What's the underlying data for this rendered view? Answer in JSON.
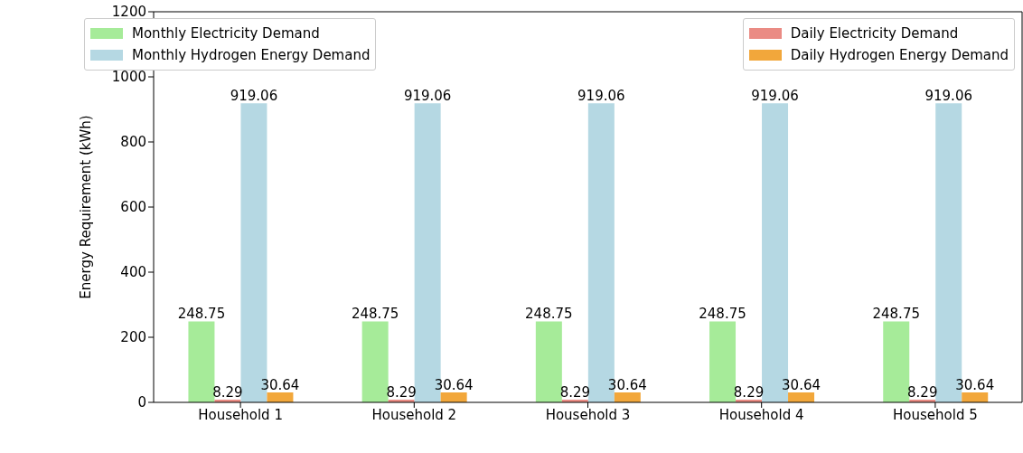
{
  "chart_data": {
    "type": "bar",
    "ylabel": "Energy Requirement (kWh)",
    "categories": [
      "Household 1",
      "Household 2",
      "Household 3",
      "Household 4",
      "Household 5"
    ],
    "series": [
      {
        "name": "Monthly Electricity Demand",
        "color": "#a6eb99",
        "values": [
          248.75,
          248.75,
          248.75,
          248.75,
          248.75
        ]
      },
      {
        "name": "Daily Electricity Demand",
        "color": "#ea8b84",
        "values": [
          8.29,
          8.29,
          8.29,
          8.29,
          8.29
        ]
      },
      {
        "name": "Monthly Hydrogen Energy Demand",
        "color": "#b5d8e3",
        "values": [
          919.06,
          919.06,
          919.06,
          919.06,
          919.06
        ]
      },
      {
        "name": "Daily Hydrogen Energy Demand",
        "color": "#f2a73b",
        "values": [
          30.64,
          30.64,
          30.64,
          30.64,
          30.64
        ]
      }
    ],
    "ylim": [
      0,
      1200
    ],
    "yticks": [
      0,
      200,
      400,
      600,
      800,
      1000,
      1200
    ],
    "grid": false,
    "legend": "top",
    "data_labels": true
  }
}
